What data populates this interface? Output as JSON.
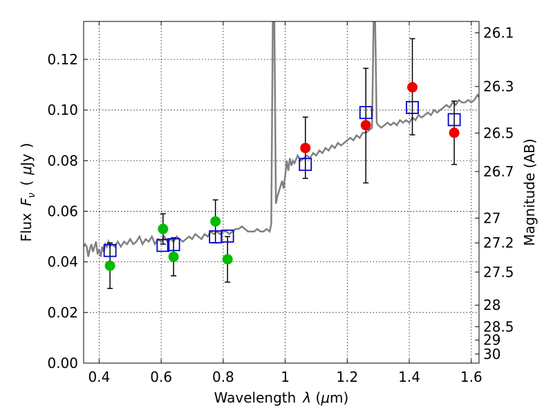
{
  "chart_data": {
    "type": "scatter",
    "xlabel_main": "Wavelength",
    "xlabel_symbol": "λ",
    "xlabel_unit_open": " (",
    "xlabel_unit_mu": "μ",
    "xlabel_unit_rest": "m)",
    "ylabel_main": "Flux",
    "ylabel_symbol": "F",
    "ylabel_sub": "ν",
    "ylabel_paren_open": "(",
    "ylabel_unit_mu": "μ",
    "ylabel_unit_rest": "Jy",
    "ylabel_paren_close": ")",
    "y2label": "Magnitude (AB)",
    "xlim": [
      0.35,
      1.625
    ],
    "ylim": [
      0.0,
      0.135
    ],
    "grid": true,
    "x_ticks": [
      {
        "value": 0.4,
        "label": "0.4"
      },
      {
        "value": 0.6,
        "label": "0.6"
      },
      {
        "value": 0.8,
        "label": "0.8"
      },
      {
        "value": 1.0,
        "label": "1"
      },
      {
        "value": 1.2,
        "label": "1.2"
      },
      {
        "value": 1.4,
        "label": "1.4"
      },
      {
        "value": 1.6,
        "label": "1.6"
      }
    ],
    "y_ticks": [
      {
        "value": 0.0,
        "label": "0.00"
      },
      {
        "value": 0.02,
        "label": "0.02"
      },
      {
        "value": 0.04,
        "label": "0.04"
      },
      {
        "value": 0.06,
        "label": "0.06"
      },
      {
        "value": 0.08,
        "label": "0.08"
      },
      {
        "value": 0.1,
        "label": "0.10"
      },
      {
        "value": 0.12,
        "label": "0.12"
      }
    ],
    "mag_ticks": [
      {
        "flux": 0.1305,
        "label": "26.1"
      },
      {
        "flux": 0.1093,
        "label": "26.3"
      },
      {
        "flux": 0.0909,
        "label": "26.5"
      },
      {
        "flux": 0.0757,
        "label": "26.7"
      },
      {
        "flux": 0.0573,
        "label": "27"
      },
      {
        "flux": 0.0475,
        "label": "27.2"
      },
      {
        "flux": 0.036,
        "label": "27.5"
      },
      {
        "flux": 0.0229,
        "label": "28"
      },
      {
        "flux": 0.0144,
        "label": "28.5"
      },
      {
        "flux": 0.0091,
        "label": "29"
      },
      {
        "flux": 0.0036,
        "label": "30"
      }
    ],
    "series": [
      {
        "type": "line",
        "color": "#808080",
        "points": [
          [
            0.35,
            0.046
          ],
          [
            0.355,
            0.047
          ],
          [
            0.36,
            0.046
          ],
          [
            0.365,
            0.042
          ],
          [
            0.37,
            0.045
          ],
          [
            0.375,
            0.047
          ],
          [
            0.38,
            0.044
          ],
          [
            0.385,
            0.046
          ],
          [
            0.39,
            0.048
          ],
          [
            0.395,
            0.043
          ],
          [
            0.4,
            0.045
          ],
          [
            0.405,
            0.042
          ],
          [
            0.41,
            0.046
          ],
          [
            0.415,
            0.044
          ],
          [
            0.42,
            0.047
          ],
          [
            0.425,
            0.046
          ],
          [
            0.43,
            0.048
          ],
          [
            0.435,
            0.046
          ],
          [
            0.44,
            0.047
          ],
          [
            0.45,
            0.046
          ],
          [
            0.46,
            0.048
          ],
          [
            0.47,
            0.046
          ],
          [
            0.48,
            0.048
          ],
          [
            0.49,
            0.047
          ],
          [
            0.5,
            0.049
          ],
          [
            0.51,
            0.047
          ],
          [
            0.52,
            0.048
          ],
          [
            0.53,
            0.05
          ],
          [
            0.54,
            0.047
          ],
          [
            0.55,
            0.049
          ],
          [
            0.56,
            0.048
          ],
          [
            0.57,
            0.05
          ],
          [
            0.58,
            0.047
          ],
          [
            0.59,
            0.049
          ],
          [
            0.6,
            0.048
          ],
          [
            0.61,
            0.05
          ],
          [
            0.62,
            0.048
          ],
          [
            0.63,
            0.049
          ],
          [
            0.64,
            0.048
          ],
          [
            0.65,
            0.05
          ],
          [
            0.66,
            0.049
          ],
          [
            0.67,
            0.048
          ],
          [
            0.68,
            0.049
          ],
          [
            0.69,
            0.05
          ],
          [
            0.7,
            0.049
          ],
          [
            0.71,
            0.051
          ],
          [
            0.72,
            0.05
          ],
          [
            0.73,
            0.049
          ],
          [
            0.74,
            0.051
          ],
          [
            0.75,
            0.05
          ],
          [
            0.76,
            0.052
          ],
          [
            0.77,
            0.051
          ],
          [
            0.78,
            0.052
          ],
          [
            0.79,
            0.051
          ],
          [
            0.8,
            0.052
          ],
          [
            0.81,
            0.052
          ],
          [
            0.82,
            0.051
          ],
          [
            0.83,
            0.052
          ],
          [
            0.84,
            0.053
          ],
          [
            0.85,
            0.053
          ],
          [
            0.86,
            0.054
          ],
          [
            0.87,
            0.053
          ],
          [
            0.88,
            0.052
          ],
          [
            0.89,
            0.052
          ],
          [
            0.9,
            0.052
          ],
          [
            0.91,
            0.053
          ],
          [
            0.92,
            0.052
          ],
          [
            0.93,
            0.052
          ],
          [
            0.94,
            0.053
          ],
          [
            0.95,
            0.052
          ],
          [
            0.955,
            0.055
          ],
          [
            0.96,
            0.135
          ],
          [
            0.965,
            0.135
          ],
          [
            0.97,
            0.063
          ],
          [
            0.975,
            0.066
          ],
          [
            0.98,
            0.068
          ],
          [
            0.985,
            0.07
          ],
          [
            0.99,
            0.072
          ],
          [
            0.995,
            0.069
          ],
          [
            1.0,
            0.074
          ],
          [
            1.005,
            0.08
          ],
          [
            1.01,
            0.076
          ],
          [
            1.015,
            0.081
          ],
          [
            1.02,
            0.078
          ],
          [
            1.025,
            0.08
          ],
          [
            1.03,
            0.079
          ],
          [
            1.04,
            0.082
          ],
          [
            1.05,
            0.08
          ],
          [
            1.06,
            0.081
          ],
          [
            1.07,
            0.082
          ],
          [
            1.08,
            0.081
          ],
          [
            1.09,
            0.083
          ],
          [
            1.1,
            0.082
          ],
          [
            1.11,
            0.084
          ],
          [
            1.12,
            0.083
          ],
          [
            1.13,
            0.085
          ],
          [
            1.14,
            0.084
          ],
          [
            1.15,
            0.086
          ],
          [
            1.16,
            0.085
          ],
          [
            1.17,
            0.087
          ],
          [
            1.18,
            0.086
          ],
          [
            1.19,
            0.087
          ],
          [
            1.2,
            0.088
          ],
          [
            1.21,
            0.089
          ],
          [
            1.22,
            0.088
          ],
          [
            1.23,
            0.09
          ],
          [
            1.24,
            0.089
          ],
          [
            1.25,
            0.091
          ],
          [
            1.26,
            0.091
          ],
          [
            1.27,
            0.092
          ],
          [
            1.28,
            0.093
          ],
          [
            1.285,
            0.135
          ],
          [
            1.29,
            0.135
          ],
          [
            1.295,
            0.095
          ],
          [
            1.3,
            0.094
          ],
          [
            1.31,
            0.093
          ],
          [
            1.32,
            0.094
          ],
          [
            1.33,
            0.095
          ],
          [
            1.34,
            0.094
          ],
          [
            1.35,
            0.095
          ],
          [
            1.36,
            0.094
          ],
          [
            1.37,
            0.096
          ],
          [
            1.38,
            0.095
          ],
          [
            1.39,
            0.096
          ],
          [
            1.4,
            0.095
          ],
          [
            1.41,
            0.097
          ],
          [
            1.42,
            0.096
          ],
          [
            1.43,
            0.098
          ],
          [
            1.44,
            0.097
          ],
          [
            1.45,
            0.098
          ],
          [
            1.46,
            0.099
          ],
          [
            1.47,
            0.098
          ],
          [
            1.48,
            0.1
          ],
          [
            1.49,
            0.099
          ],
          [
            1.5,
            0.1
          ],
          [
            1.51,
            0.101
          ],
          [
            1.52,
            0.102
          ],
          [
            1.53,
            0.101
          ],
          [
            1.54,
            0.103
          ],
          [
            1.55,
            0.102
          ],
          [
            1.56,
            0.104
          ],
          [
            1.57,
            0.103
          ],
          [
            1.58,
            0.103
          ],
          [
            1.59,
            0.104
          ],
          [
            1.6,
            0.103
          ],
          [
            1.61,
            0.104
          ],
          [
            1.62,
            0.106
          ],
          [
            1.625,
            0.105
          ]
        ]
      },
      {
        "type": "scatter-errorbar",
        "color": "#00bb00",
        "marker": "circle",
        "points": [
          {
            "x": 0.435,
            "y": 0.0385,
            "err_low": 0.0295,
            "err_high": 0.0475
          },
          {
            "x": 0.606,
            "y": 0.053,
            "err_low": 0.047,
            "err_high": 0.059
          },
          {
            "x": 0.64,
            "y": 0.042,
            "err_low": 0.0345,
            "err_high": 0.0495
          },
          {
            "x": 0.775,
            "y": 0.056,
            "err_low": 0.0475,
            "err_high": 0.0645
          },
          {
            "x": 0.814,
            "y": 0.041,
            "err_low": 0.032,
            "err_high": 0.05
          }
        ]
      },
      {
        "type": "scatter-errorbar",
        "color": "#ee0000",
        "marker": "circle",
        "points": [
          {
            "x": 1.065,
            "y": 0.085,
            "err_low": 0.073,
            "err_high": 0.0972
          },
          {
            "x": 1.26,
            "y": 0.094,
            "err_low": 0.0712,
            "err_high": 0.1165
          },
          {
            "x": 1.41,
            "y": 0.109,
            "err_low": 0.0902,
            "err_high": 0.1282
          },
          {
            "x": 1.545,
            "y": 0.091,
            "err_low": 0.0785,
            "err_high": 0.1035
          }
        ]
      },
      {
        "type": "scatter",
        "color": "#0000cc",
        "marker": "open-square",
        "points": [
          {
            "x": 0.435,
            "y": 0.0445
          },
          {
            "x": 0.606,
            "y": 0.0465
          },
          {
            "x": 0.64,
            "y": 0.0468
          },
          {
            "x": 0.775,
            "y": 0.0499
          },
          {
            "x": 0.814,
            "y": 0.0502
          },
          {
            "x": 1.065,
            "y": 0.0785
          },
          {
            "x": 1.26,
            "y": 0.099
          },
          {
            "x": 1.41,
            "y": 0.101
          },
          {
            "x": 1.545,
            "y": 0.0962
          }
        ]
      }
    ]
  }
}
